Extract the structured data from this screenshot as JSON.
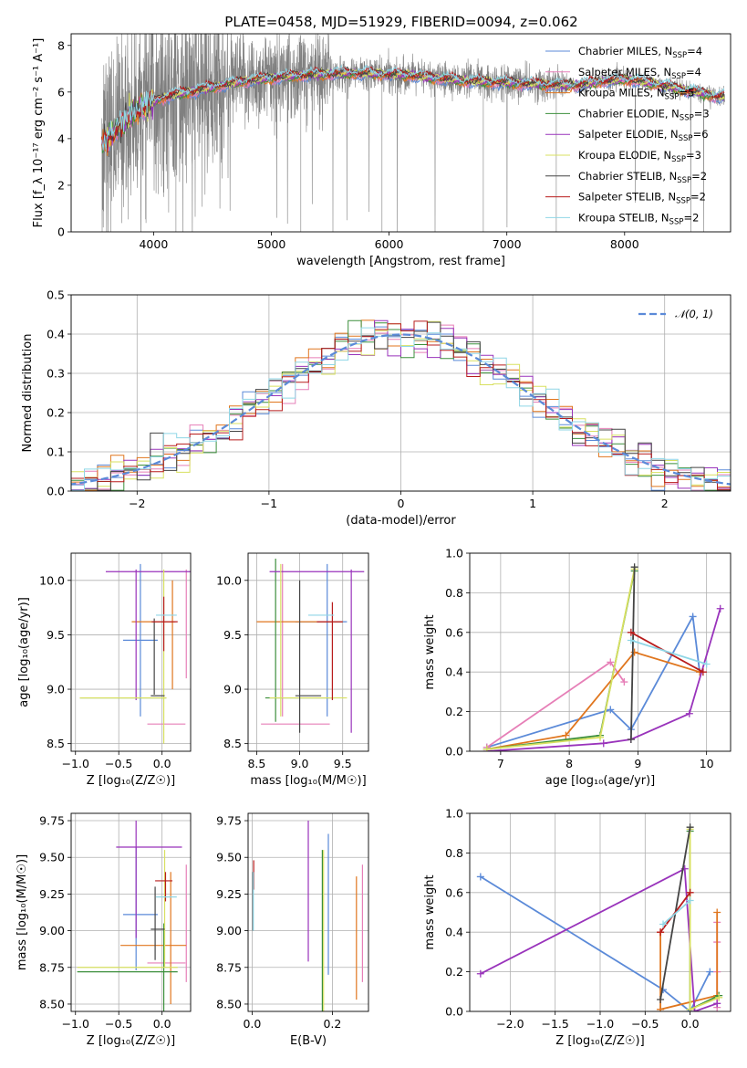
{
  "figure": {
    "title": "PLATE=0458, MJD=51929, FIBERID=0094, z=0.062"
  },
  "models": [
    {
      "name": "Chabrier MILES",
      "nssp": "4",
      "color": "#5b8ad8"
    },
    {
      "name": "Salpeter MILES",
      "nssp": "4",
      "color": "#e67fb7"
    },
    {
      "name": "Kroupa MILES",
      "nssp": "5",
      "color": "#e0761e"
    },
    {
      "name": "Chabrier ELODIE",
      "nssp": "3",
      "color": "#3c8f3c"
    },
    {
      "name": "Salpeter ELODIE",
      "nssp": "6",
      "color": "#9933bb"
    },
    {
      "name": "Kroupa ELODIE",
      "nssp": "3",
      "color": "#d8e060"
    },
    {
      "name": "Chabrier STELIB",
      "nssp": "2",
      "color": "#444444"
    },
    {
      "name": "Salpeter STELIB",
      "nssp": "2",
      "color": "#b81c1c"
    },
    {
      "name": "Kroupa STELIB",
      "nssp": "2",
      "color": "#8fd6e6"
    }
  ],
  "chart_data": [
    {
      "id": "spectrum",
      "type": "line",
      "xlabel": "wavelength [Angstrom, rest frame]",
      "ylabel": "Flux [f_λ 10⁻¹⁷ erg cm⁻² s⁻¹ A⁻¹]",
      "xlim": [
        3300,
        8900
      ],
      "ylim": [
        0,
        8.5
      ],
      "xticks": [
        4000,
        5000,
        6000,
        7000,
        8000
      ],
      "yticks": [
        0,
        2,
        4,
        6,
        8
      ],
      "legend": "upper right",
      "continuum": {
        "x": [
          3560,
          3600,
          3700,
          3800,
          3900,
          4000,
          4100,
          4200,
          4400,
          4600,
          4800,
          5000,
          5200,
          5400,
          5600,
          5800,
          6000,
          6200,
          6400,
          6600,
          6800,
          7000,
          7200,
          7400,
          7600,
          7800,
          8000,
          8200,
          8400,
          8600,
          8800
        ],
        "y": [
          3.9,
          4.0,
          4.4,
          5.0,
          5.3,
          5.6,
          5.8,
          5.9,
          6.1,
          6.3,
          6.5,
          6.6,
          6.7,
          6.75,
          6.8,
          6.8,
          6.75,
          6.7,
          6.6,
          6.5,
          6.45,
          6.4,
          6.35,
          6.3,
          6.3,
          6.45,
          6.55,
          6.4,
          6.2,
          6.0,
          5.8
        ]
      },
      "data_series": {
        "name": "data",
        "color": "#808080",
        "x_range": [
          3560,
          8850
        ]
      }
    },
    {
      "id": "residuals",
      "type": "histogram",
      "xlabel": "(data-model)/error",
      "ylabel": "Normed distribution",
      "xlim": [
        -2.5,
        2.5
      ],
      "ylim": [
        0,
        0.5
      ],
      "xticks": [
        -2,
        -1,
        0,
        1,
        2
      ],
      "yticks": [
        0.0,
        0.1,
        0.2,
        0.3,
        0.4,
        0.5
      ],
      "bin_width": 0.1,
      "reference": {
        "name": "𝒩(0, 1)",
        "mean": 0,
        "sigma": 1,
        "color": "#5b8ad8",
        "style": "dashed"
      },
      "legend": "upper right"
    },
    {
      "id": "age_vs_z",
      "type": "errorbar",
      "xlabel": "Z [log₁₀(Z/Z☉)]",
      "ylabel": "age  [log₁₀(age/yr)]",
      "xlim": [
        -1.05,
        0.33
      ],
      "ylim": [
        8.43,
        10.25
      ],
      "xticks": [
        -1.0,
        -0.5,
        0.0
      ],
      "yticks": [
        8.5,
        9.0,
        9.5,
        10.0
      ],
      "points": [
        {
          "model": 0,
          "x": -0.25,
          "xerr": 0.2,
          "y": 9.45,
          "yerr": 0.7
        },
        {
          "model": 1,
          "x": 0.05,
          "xerr": 0.22,
          "y": 8.68,
          "yerr": 0.0
        },
        {
          "model": 1,
          "x": 0.28,
          "xerr": 0.0,
          "y": 9.6,
          "yerr": 0.5
        },
        {
          "model": 2,
          "x": -0.1,
          "xerr": 0.25,
          "y": 9.62,
          "yerr": 0.0
        },
        {
          "model": 2,
          "x": 0.12,
          "xerr": 0.0,
          "y": 9.5,
          "yerr": 0.5
        },
        {
          "model": 3,
          "x": -0.45,
          "xerr": 0.5,
          "y": 8.92,
          "yerr": 0.0
        },
        {
          "model": 4,
          "x": -0.1,
          "xerr": 0.55,
          "y": 10.08,
          "yerr": 0.0
        },
        {
          "model": 4,
          "x": -0.3,
          "xerr": 0.0,
          "y": 9.5,
          "yerr": 0.6
        },
        {
          "model": 5,
          "x": -0.45,
          "xerr": 0.5,
          "y": 8.92,
          "yerr": 0.0
        },
        {
          "model": 5,
          "x": 0.02,
          "xerr": 0.0,
          "y": 9.3,
          "yerr": 0.8
        },
        {
          "model": 6,
          "x": -0.05,
          "xerr": 0.08,
          "y": 8.94,
          "yerr": 0.0
        },
        {
          "model": 6,
          "x": -0.09,
          "xerr": 0.0,
          "y": 9.3,
          "yerr": 0.35
        },
        {
          "model": 7,
          "x": 0.03,
          "xerr": 0.15,
          "y": 9.62,
          "yerr": 0.0
        },
        {
          "model": 7,
          "x": 0.02,
          "xerr": 0.0,
          "y": 9.6,
          "yerr": 0.25
        },
        {
          "model": 8,
          "x": 0.05,
          "xerr": 0.12,
          "y": 9.68,
          "yerr": 0.0
        }
      ]
    },
    {
      "id": "age_vs_mass",
      "type": "errorbar",
      "xlabel": "mass [log₁₀(M/M☉)]",
      "ylabel": "",
      "xlim": [
        8.4,
        9.8
      ],
      "ylim": [
        8.43,
        10.25
      ],
      "xticks": [
        8.5,
        9.0,
        9.5
      ],
      "yticks": [
        8.5,
        9.0,
        9.5,
        10.0
      ],
      "points": [
        {
          "model": 0,
          "x": 9.25,
          "xerr": 0.3,
          "y": 9.62,
          "yerr": 0.0
        },
        {
          "model": 0,
          "x": 9.32,
          "xerr": 0.0,
          "y": 9.45,
          "yerr": 0.7
        },
        {
          "model": 1,
          "x": 8.95,
          "xerr": 0.4,
          "y": 8.68,
          "yerr": 0.0
        },
        {
          "model": 1,
          "x": 8.8,
          "xerr": 0.0,
          "y": 9.45,
          "yerr": 0.7
        },
        {
          "model": 2,
          "x": 9.0,
          "xerr": 0.5,
          "y": 9.62,
          "yerr": 0.0
        },
        {
          "model": 3,
          "x": 8.72,
          "xerr": 0.0,
          "y": 9.45,
          "yerr": 0.75
        },
        {
          "model": 3,
          "x": 9.0,
          "xerr": 0.4,
          "y": 8.92,
          "yerr": 0.0
        },
        {
          "model": 4,
          "x": 9.2,
          "xerr": 0.55,
          "y": 10.08,
          "yerr": 0.0
        },
        {
          "model": 4,
          "x": 9.6,
          "xerr": 0.0,
          "y": 9.35,
          "yerr": 0.75
        },
        {
          "model": 5,
          "x": 8.78,
          "xerr": 0.0,
          "y": 9.45,
          "yerr": 0.7
        },
        {
          "model": 5,
          "x": 9.1,
          "xerr": 0.45,
          "y": 8.92,
          "yerr": 0.0
        },
        {
          "model": 6,
          "x": 9.0,
          "xerr": 0.0,
          "y": 9.3,
          "yerr": 0.7
        },
        {
          "model": 6,
          "x": 9.1,
          "xerr": 0.15,
          "y": 8.94,
          "yerr": 0.0
        },
        {
          "model": 7,
          "x": 9.35,
          "xerr": 0.15,
          "y": 9.62,
          "yerr": 0.0
        },
        {
          "model": 7,
          "x": 9.38,
          "xerr": 0.0,
          "y": 9.35,
          "yerr": 0.45
        },
        {
          "model": 8,
          "x": 9.25,
          "xerr": 0.15,
          "y": 9.68,
          "yerr": 0.0
        }
      ]
    },
    {
      "id": "weight_vs_age",
      "type": "line",
      "xlabel": "age  [log₁₀(age/yr)]",
      "ylabel": "mass weight",
      "xlim": [
        6.55,
        10.35
      ],
      "ylim": [
        0.0,
        1.0
      ],
      "xticks": [
        7,
        8,
        9,
        10
      ],
      "yticks": [
        0.0,
        0.2,
        0.4,
        0.6,
        0.8,
        1.0
      ],
      "series": [
        {
          "model": 0,
          "x": [
            6.8,
            8.6,
            8.9,
            9.8,
            9.9
          ],
          "y": [
            0.02,
            0.21,
            0.11,
            0.68,
            0.4
          ]
        },
        {
          "model": 1,
          "x": [
            6.8,
            8.6,
            8.8
          ],
          "y": [
            0.02,
            0.45,
            0.35
          ]
        },
        {
          "model": 2,
          "x": [
            6.8,
            7.95,
            8.95,
            9.9
          ],
          "y": [
            0.01,
            0.08,
            0.5,
            0.4
          ]
        },
        {
          "model": 3,
          "x": [
            6.8,
            8.45,
            8.95
          ],
          "y": [
            0.01,
            0.08,
            0.91
          ]
        },
        {
          "model": 4,
          "x": [
            6.8,
            8.5,
            8.9,
            9.75,
            10.2
          ],
          "y": [
            0.0,
            0.04,
            0.06,
            0.19,
            0.72
          ]
        },
        {
          "model": 5,
          "x": [
            6.8,
            8.45,
            8.95
          ],
          "y": [
            0.01,
            0.07,
            0.92
          ]
        },
        {
          "model": 6,
          "x": [
            8.9,
            8.95
          ],
          "y": [
            0.06,
            0.93
          ]
        },
        {
          "model": 7,
          "x": [
            8.9,
            9.95
          ],
          "y": [
            0.6,
            0.4
          ]
        },
        {
          "model": 8,
          "x": [
            8.9,
            10.0
          ],
          "y": [
            0.56,
            0.44
          ]
        }
      ]
    },
    {
      "id": "mass_vs_z",
      "type": "errorbar",
      "xlabel": "Z [log₁₀(Z/Z☉)]",
      "ylabel": "mass [log₁₀(M/M☉)]",
      "xlim": [
        -1.05,
        0.33
      ],
      "ylim": [
        8.45,
        9.8
      ],
      "xticks": [
        -1.0,
        -0.5,
        0.0
      ],
      "yticks": [
        8.5,
        8.75,
        9.0,
        9.25,
        9.5,
        9.75
      ],
      "points": [
        {
          "model": 0,
          "x": -0.25,
          "xerr": 0.2,
          "y": 9.11,
          "yerr": 0.0
        },
        {
          "model": 0,
          "x": -0.3,
          "xerr": 0.0,
          "y": 9.15,
          "yerr": 0.42
        },
        {
          "model": 1,
          "x": 0.05,
          "xerr": 0.22,
          "y": 8.78,
          "yerr": 0.0
        },
        {
          "model": 1,
          "x": 0.28,
          "xerr": 0.0,
          "y": 9.05,
          "yerr": 0.4
        },
        {
          "model": 2,
          "x": -0.1,
          "xerr": 0.38,
          "y": 8.9,
          "yerr": 0.0
        },
        {
          "model": 2,
          "x": 0.1,
          "xerr": 0.0,
          "y": 8.95,
          "yerr": 0.45
        },
        {
          "model": 3,
          "x": -0.4,
          "xerr": 0.58,
          "y": 8.72,
          "yerr": 0.0
        },
        {
          "model": 3,
          "x": 0.02,
          "xerr": 0.0,
          "y": 8.75,
          "yerr": 0.3
        },
        {
          "model": 4,
          "x": -0.15,
          "xerr": 0.38,
          "y": 9.57,
          "yerr": 0.0
        },
        {
          "model": 4,
          "x": -0.3,
          "xerr": 0.0,
          "y": 9.35,
          "yerr": 0.4
        },
        {
          "model": 5,
          "x": -0.4,
          "xerr": 0.58,
          "y": 8.75,
          "yerr": 0.0
        },
        {
          "model": 5,
          "x": 0.03,
          "xerr": 0.0,
          "y": 9.15,
          "yerr": 0.4
        },
        {
          "model": 6,
          "x": -0.05,
          "xerr": 0.08,
          "y": 9.01,
          "yerr": 0.0
        },
        {
          "model": 6,
          "x": -0.08,
          "xerr": 0.0,
          "y": 9.05,
          "yerr": 0.25
        },
        {
          "model": 7,
          "x": 0.02,
          "xerr": 0.1,
          "y": 9.34,
          "yerr": 0.0
        },
        {
          "model": 7,
          "x": 0.04,
          "xerr": 0.0,
          "y": 9.3,
          "yerr": 0.1
        },
        {
          "model": 8,
          "x": 0.05,
          "xerr": 0.12,
          "y": 9.23,
          "yerr": 0.0
        }
      ]
    },
    {
      "id": "mass_vs_ebv",
      "type": "errorbar",
      "xlabel": "E(B-V)",
      "ylabel": "",
      "xlim": [
        -0.01,
        0.29
      ],
      "ylim": [
        8.45,
        9.8
      ],
      "xticks": [
        0.0,
        0.2
      ],
      "yticks": [
        8.5,
        8.75,
        9.0,
        9.25,
        9.5,
        9.75
      ],
      "points": [
        {
          "model": 0,
          "x": 0.19,
          "xerr": 0.0,
          "y": 9.18,
          "yerr": 0.48
        },
        {
          "model": 1,
          "x": 0.275,
          "xerr": 0.0,
          "y": 9.05,
          "yerr": 0.4
        },
        {
          "model": 2,
          "x": 0.26,
          "xerr": 0.0,
          "y": 8.95,
          "yerr": 0.42
        },
        {
          "model": 3,
          "x": 0.175,
          "xerr": 0.0,
          "y": 9.0,
          "yerr": 0.55
        },
        {
          "model": 4,
          "x": 0.14,
          "xerr": 0.0,
          "y": 9.27,
          "yerr": 0.48
        },
        {
          "model": 5,
          "x": 0.178,
          "xerr": 0.0,
          "y": 9.0,
          "yerr": 0.55
        },
        {
          "model": 6,
          "x": 0.002,
          "xerr": 0.0,
          "y": 9.2,
          "yerr": 0.2
        },
        {
          "model": 7,
          "x": 0.004,
          "xerr": 0.0,
          "y": 9.38,
          "yerr": 0.1
        },
        {
          "model": 8,
          "x": 0.003,
          "xerr": 0.0,
          "y": 9.2,
          "yerr": 0.2
        }
      ]
    },
    {
      "id": "weight_vs_z",
      "type": "line",
      "xlabel": "Z [log₁₀(Z/Z☉)]",
      "ylabel": "mass weight",
      "xlim": [
        -2.45,
        0.45
      ],
      "ylim": [
        0.0,
        1.0
      ],
      "xticks": [
        -2.0,
        -1.5,
        -1.0,
        -0.5,
        0.0
      ],
      "yticks": [
        0.0,
        0.2,
        0.4,
        0.6,
        0.8,
        1.0
      ],
      "series": [
        {
          "model": 0,
          "x": [
            -2.33,
            -0.3,
            0.0,
            0.22
          ],
          "y": [
            0.68,
            0.11,
            0.0,
            0.2
          ]
        },
        {
          "model": 1,
          "x": [
            0.3,
            0.3,
            0.3,
            0.3
          ],
          "y": [
            0.45,
            0.35,
            0.2,
            0.02
          ]
        },
        {
          "model": 2,
          "x": [
            -0.33,
            -0.33,
            0.3,
            0.3
          ],
          "y": [
            0.4,
            0.01,
            0.08,
            0.5
          ]
        },
        {
          "model": 3,
          "x": [
            0.0,
            0.0,
            0.32
          ],
          "y": [
            0.91,
            0.01,
            0.08
          ]
        },
        {
          "model": 4,
          "x": [
            -2.33,
            -0.06,
            0.05,
            0.3
          ],
          "y": [
            0.19,
            0.72,
            0.0,
            0.04
          ]
        },
        {
          "model": 5,
          "x": [
            0.0,
            0.0,
            0.32
          ],
          "y": [
            0.92,
            0.01,
            0.07
          ]
        },
        {
          "model": 6,
          "x": [
            -0.33,
            0.0
          ],
          "y": [
            0.06,
            0.93
          ]
        },
        {
          "model": 7,
          "x": [
            -0.33,
            0.0
          ],
          "y": [
            0.4,
            0.6
          ]
        },
        {
          "model": 8,
          "x": [
            -0.3,
            0.0
          ],
          "y": [
            0.44,
            0.56
          ]
        }
      ]
    }
  ]
}
